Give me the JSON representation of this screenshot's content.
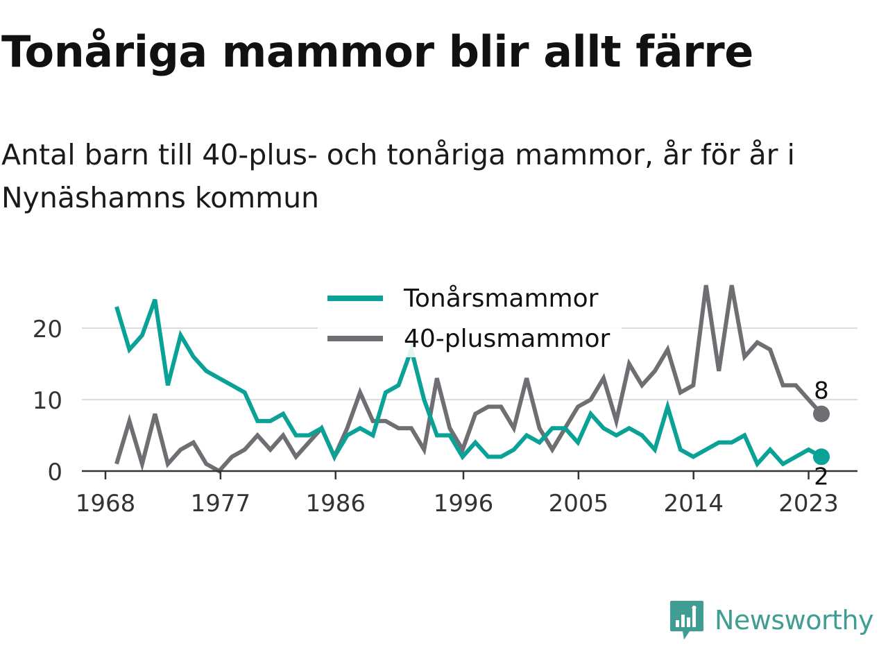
{
  "title": "Tonåriga mammor blir allt färre",
  "subtitle": "Antal barn till 40-plus- och tonåriga mammor, år för år i Nynäshamns kommun",
  "brand": {
    "name": "Newsworthy",
    "icon": "newsworthy-logo-icon",
    "color": "#3f9d93"
  },
  "chart_data": {
    "type": "line",
    "ylim": [
      0,
      26
    ],
    "yticks": [
      0,
      10,
      20
    ],
    "xlim": [
      1968,
      2024
    ],
    "xticks": [
      1968,
      1977,
      1986,
      1996,
      2005,
      2014,
      2023
    ],
    "grid": true,
    "legend_position": "top-center",
    "x": [
      1969,
      1970,
      1971,
      1972,
      1973,
      1974,
      1975,
      1976,
      1977,
      1978,
      1979,
      1980,
      1981,
      1982,
      1983,
      1984,
      1985,
      1986,
      1987,
      1988,
      1989,
      1990,
      1991,
      1992,
      1993,
      1994,
      1995,
      1996,
      1997,
      1998,
      1999,
      2000,
      2001,
      2002,
      2003,
      2004,
      2005,
      2006,
      2007,
      2008,
      2009,
      2010,
      2011,
      2012,
      2013,
      2014,
      2015,
      2016,
      2017,
      2018,
      2019,
      2020,
      2021,
      2022,
      2023,
      2024
    ],
    "series": [
      {
        "name": "Tonårsmammor",
        "color": "#0aa196",
        "end_label": "2",
        "values": [
          23,
          17,
          19,
          24,
          12,
          19,
          16,
          14,
          13,
          12,
          11,
          7,
          7,
          8,
          5,
          5,
          6,
          2,
          5,
          6,
          5,
          11,
          12,
          17,
          10,
          5,
          5,
          2,
          4,
          2,
          2,
          3,
          5,
          4,
          6,
          6,
          4,
          8,
          6,
          5,
          6,
          5,
          3,
          9,
          3,
          2,
          3,
          4,
          4,
          5,
          1,
          3,
          1,
          2,
          3,
          2
        ]
      },
      {
        "name": "40-plusmammor",
        "color": "#6e6e73",
        "end_label": "8",
        "values": [
          1,
          7,
          1,
          8,
          1,
          3,
          4,
          1,
          0,
          2,
          3,
          5,
          3,
          5,
          2,
          4,
          6,
          2,
          6,
          11,
          7,
          7,
          6,
          6,
          3,
          13,
          6,
          3,
          8,
          9,
          9,
          6,
          13,
          6,
          3,
          6,
          9,
          10,
          13,
          7,
          15,
          12,
          14,
          17,
          11,
          12,
          26,
          14,
          26,
          16,
          18,
          17,
          12,
          12,
          10,
          8
        ]
      }
    ]
  }
}
